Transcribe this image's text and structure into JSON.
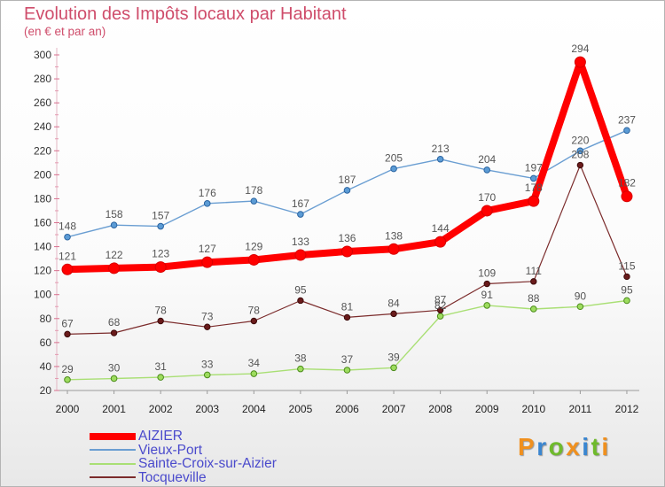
{
  "chart_data": {
    "type": "line",
    "title": "Evolution des Impôts locaux par Habitant",
    "subtitle": "(en € et par an)",
    "xlabel": "",
    "ylabel": "",
    "categories": [
      "2000",
      "2001",
      "2002",
      "2003",
      "2004",
      "2005",
      "2006",
      "2007",
      "2008",
      "2009",
      "2010",
      "2011",
      "2012"
    ],
    "ylim": [
      20,
      300
    ],
    "yticks": [
      300,
      280,
      260,
      240,
      220,
      200,
      180,
      160,
      140,
      120,
      100,
      80,
      60,
      40,
      20
    ],
    "grid": false,
    "legend_position": "bottom-left",
    "series": [
      {
        "name": "AIZIER",
        "color": "#ff0000",
        "values": [
          121,
          122,
          123,
          127,
          129,
          133,
          136,
          138,
          144,
          170,
          178,
          294,
          182
        ]
      },
      {
        "name": "Vieux-Port",
        "color": "#6a9ed2",
        "values": [
          148,
          158,
          157,
          176,
          178,
          167,
          187,
          205,
          213,
          204,
          197,
          220,
          237
        ]
      },
      {
        "name": "Sainte-Croix-sur-Aizier",
        "color": "#a9df74",
        "values": [
          29,
          30,
          31,
          33,
          34,
          38,
          37,
          39,
          82,
          91,
          88,
          90,
          95
        ]
      },
      {
        "name": "Tocqueville",
        "color": "#7b2b2b",
        "values": [
          67,
          68,
          78,
          73,
          78,
          95,
          81,
          84,
          87,
          109,
          111,
          208,
          115
        ]
      }
    ]
  },
  "logo": {
    "text": "Proxiti",
    "colors": [
      "#f0901e",
      "#3a86d0",
      "#6fba2c",
      "#f0901e",
      "#3a86d0",
      "#6fba2c",
      "#f0901e"
    ]
  }
}
